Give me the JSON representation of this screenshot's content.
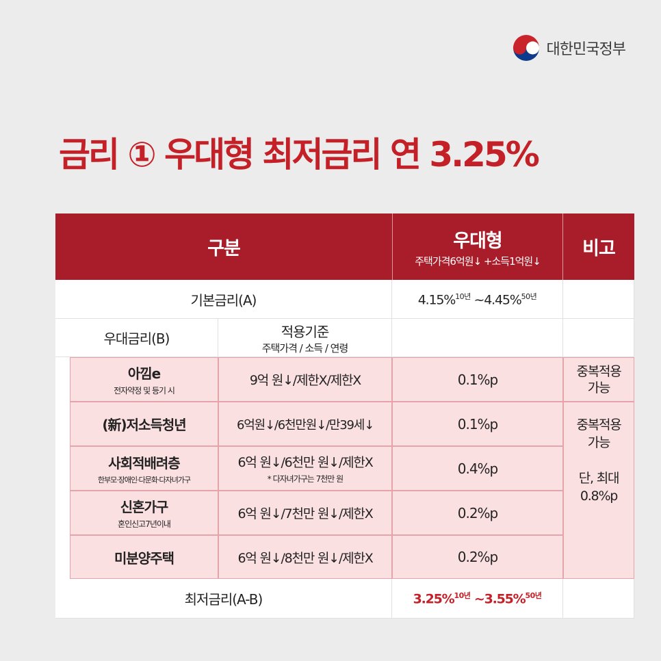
{
  "org": {
    "name": "대한민국정부",
    "logo_icon": "taegeuk-icon"
  },
  "title": "금리 ① 우대형 최저금리 연 3.25%",
  "header": {
    "col_category": "구분",
    "col_type": "우대형",
    "col_type_sub": "주택가격6억원↓ +소득1억원↓",
    "col_note": "비고"
  },
  "base_rate": {
    "label": "기본금리(A)",
    "from": "4.15%",
    "from_sup": "10년",
    "to": "~4.45%",
    "to_sup": "50년"
  },
  "preferential": {
    "label": "우대금리(B)",
    "criteria_title": "적용기준",
    "criteria_sub": "주택가격 / 소득 / 연령"
  },
  "rows": [
    {
      "name": "아낌e",
      "sub": "전자약정 및 등기 시",
      "criteria": "9억 원↓/제한X/제한X",
      "rate": "0.1%p"
    },
    {
      "name": "(新)저소득청년",
      "sub": "",
      "criteria": "6억원↓/6천만원↓/만39세↓",
      "rate": "0.1%p"
    },
    {
      "name": "사회적배려층",
      "sub": "한부모·장애인·다문화·다자녀가구",
      "criteria": "6억 원↓/6천만 원↓/제한X",
      "criteria_note": "* 다자녀가구는 7천만 원",
      "rate": "0.4%p"
    },
    {
      "name": "신혼가구",
      "sub": "혼인신고7년이내",
      "criteria": "6억 원↓/7천만 원↓/제한X",
      "rate": "0.2%p"
    },
    {
      "name": "미분양주택",
      "sub": "",
      "criteria": "6억 원↓/8천만 원↓/제한X",
      "rate": "0.2%p"
    }
  ],
  "notes": {
    "first": "중복적용\n가능",
    "group_line1": "중복적용",
    "group_line2": "가능",
    "group_line3": "단, 최대",
    "group_line4": "0.8%p"
  },
  "min_rate": {
    "label": "최저금리(A-B)",
    "from": "3.25%",
    "from_sup": "10년",
    "to": "~3.55%",
    "to_sup": "50년"
  },
  "colors": {
    "accent": "#c32027",
    "header_bg": "#a91d2a",
    "pink_bg": "#fbe0e2",
    "page_bg": "#ececec"
  }
}
